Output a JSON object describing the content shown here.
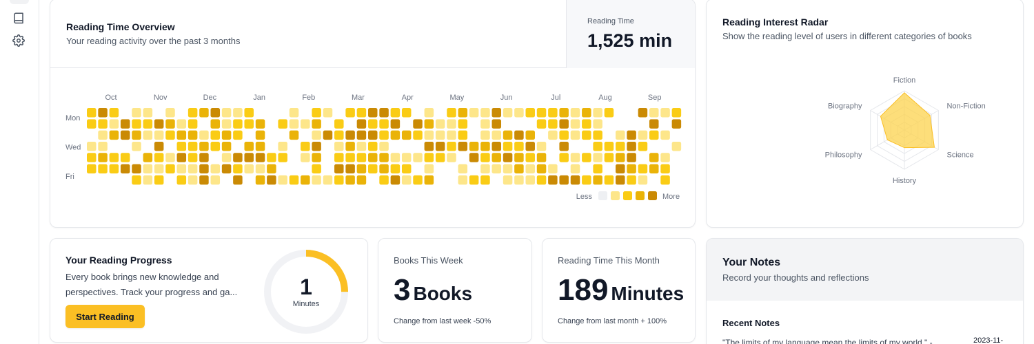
{
  "sidebar": {
    "items": [
      {
        "icon": "book-icon",
        "label": ""
      },
      {
        "icon": "gear-icon",
        "label": ""
      }
    ]
  },
  "heatmap_card": {
    "title": "Reading Time Overview",
    "subtitle": "Your reading activity over the past 3 months",
    "total_label": "Reading Time",
    "total_value": "1,525 min",
    "months": [
      "Oct",
      "Nov",
      "Dec",
      "Jan",
      "Feb",
      "Mar",
      "Apr",
      "May",
      "Jun",
      "Jul",
      "Aug",
      "Sep"
    ],
    "day_labels": [
      "Mon",
      "Wed",
      "Fri"
    ],
    "legend_less": "Less",
    "legend_more": "More",
    "colors": [
      "#eef0f3",
      "#fde68a",
      "#facc15",
      "#eab308",
      "#ca8a04"
    ],
    "weeks": 53
  },
  "radar_card": {
    "title": "Reading Interest Radar",
    "subtitle": "Show the reading level of users in different categories of books",
    "chart_data": {
      "type": "radar",
      "axes": [
        "Fiction",
        "Non-Fiction",
        "Science",
        "History",
        "Philosophy",
        "Biography"
      ],
      "values": [
        0.95,
        0.75,
        0.88,
        0.45,
        0.5,
        0.7
      ],
      "max": 1,
      "fill": "#fcd34d"
    }
  },
  "progress_card": {
    "title": "Your Reading Progress",
    "description": "Every book brings new knowledge and perspectives. Track your progress and ga...",
    "button_label": "Start Reading",
    "ring_value": "1",
    "ring_unit": "Minutes",
    "ring_progress": 0.25,
    "ring_color": "#fbbf24"
  },
  "books_card": {
    "label": "Books This Week",
    "value": "3",
    "unit": "Books",
    "change": "Change from last week -50%"
  },
  "month_card": {
    "label": "Reading Time This Month",
    "value": "189",
    "unit": "Minutes",
    "change": "Change from last month + 100%"
  },
  "notes_card": {
    "title": "Your Notes",
    "subtitle": "Record your thoughts and reflections",
    "recent_title": "Recent Notes",
    "note_text": "\"The limits of my language mean the limits of my world.\" -",
    "note_date": "2023-11-"
  }
}
